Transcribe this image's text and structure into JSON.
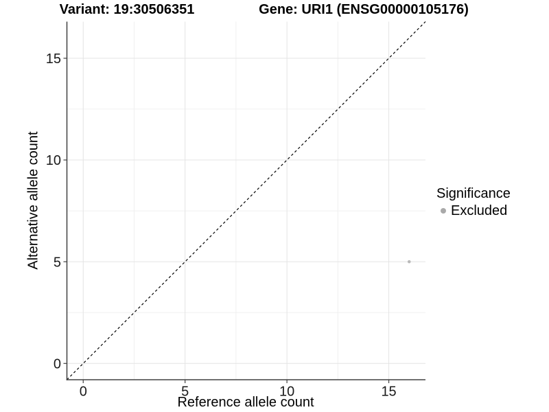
{
  "chart_data": {
    "type": "scatter",
    "title_left": "Variant: 19:30506351",
    "title_right": "Gene: URI1 (ENSG00000105176)",
    "xlabel": "Reference allele count",
    "ylabel": "Alternative allele count",
    "xlim": [
      -0.8,
      16.8
    ],
    "ylim": [
      -0.8,
      16.8
    ],
    "x_ticks": [
      0,
      5,
      10,
      15
    ],
    "y_ticks": [
      0,
      5,
      10,
      15
    ],
    "x_minor_ticks": [
      2.5,
      7.5,
      12.5
    ],
    "y_minor_ticks": [
      2.5,
      7.5,
      12.5
    ],
    "grid": "on",
    "reference_line": {
      "equation": "y = x",
      "style": "dashed",
      "color": "#000000"
    },
    "series": [
      {
        "name": "Excluded",
        "color": "#b9b9b9",
        "points": [
          [
            16,
            5
          ]
        ]
      }
    ],
    "legend": {
      "position": "right",
      "title": "Significance",
      "items": [
        {
          "label": "Excluded",
          "color": "#a9a9a9"
        }
      ]
    },
    "colors": {
      "grid_major": "#e4e4e4",
      "grid_minor": "#f0f0f0",
      "axis_line": "#404040",
      "tick_mark": "#404040",
      "tick_text": "#1a1a1a",
      "background": "#ffffff"
    }
  }
}
